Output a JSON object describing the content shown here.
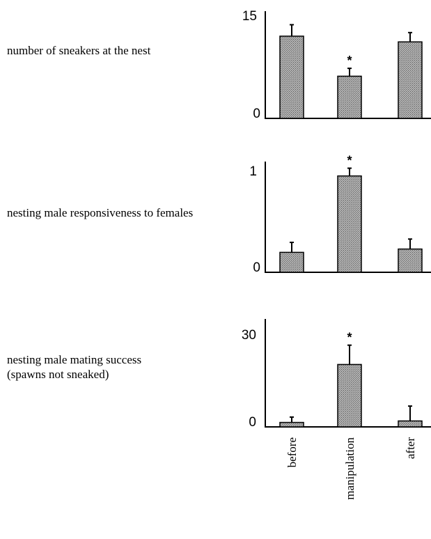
{
  "chart_data": [
    {
      "type": "bar",
      "ylabel": "number of sneakers at the nest",
      "ylabel_lines": [
        "number of sneakers at the nest"
      ],
      "categories": [
        "before",
        "manipulation",
        "after"
      ],
      "values": [
        11.5,
        5.9,
        10.7
      ],
      "errors": [
        1.6,
        1.1,
        1.3
      ],
      "significance": [
        "",
        "*",
        ""
      ],
      "ylim": [
        0,
        15
      ],
      "yticks": [
        "0",
        "15"
      ],
      "colors": {
        "bar_fill": "#a8a8a8",
        "bar_stroke": "#000000"
      }
    },
    {
      "type": "bar",
      "ylabel": "nesting male responsiveness to females",
      "ylabel_lines": [
        "nesting male responsiveness to females"
      ],
      "categories": [
        "before",
        "manipulation",
        "after"
      ],
      "values": [
        0.18,
        0.87,
        0.21
      ],
      "errors": [
        0.09,
        0.07,
        0.09
      ],
      "significance": [
        "",
        "*",
        ""
      ],
      "ylim": [
        0,
        1
      ],
      "yticks": [
        "0",
        "1"
      ],
      "colors": {
        "bar_fill": "#a8a8a8",
        "bar_stroke": "#000000"
      }
    },
    {
      "type": "bar",
      "ylabel": "nesting male mating success (spawns not sneaked)",
      "ylabel_lines": [
        "nesting male mating success",
        "(spawns not sneaked)"
      ],
      "categories": [
        "before",
        "manipulation",
        "after"
      ],
      "values": [
        1.5,
        21,
        2
      ],
      "errors": [
        1.8,
        6.5,
        5
      ],
      "significance": [
        "",
        "*",
        ""
      ],
      "ylim": [
        0,
        30
      ],
      "yticks": [
        "0",
        "30"
      ],
      "colors": {
        "bar_fill": "#a8a8a8",
        "bar_stroke": "#000000"
      }
    }
  ],
  "x_axis_labels": [
    "before",
    "manipulation",
    "after"
  ]
}
